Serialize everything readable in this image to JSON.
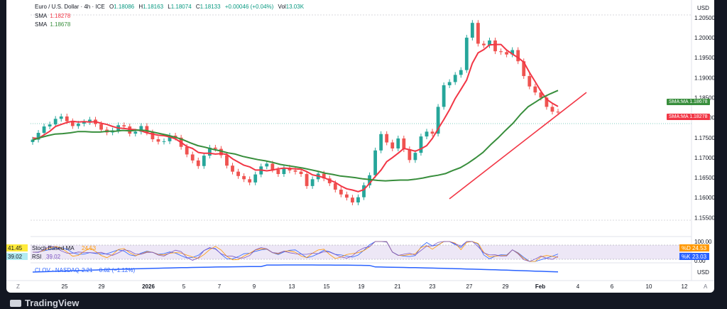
{
  "header": {
    "symbol": "Euro / U.S. Dollar · 4h · ICE",
    "open_label": "O",
    "open": "1.18086",
    "high_label": "H",
    "high": "1.18163",
    "low_label": "L",
    "low": "1.18074",
    "close_label": "C",
    "close": "1.18133",
    "change": "+0.00046 (+0.04%)",
    "vol_label": "Vol",
    "vol": "13.03K",
    "sma_fast_label": "SMA",
    "sma_fast": "1.18278",
    "sma_slow_label": "SMA",
    "sma_slow": "1.18678"
  },
  "currency": "USD",
  "currency2": "USD",
  "price_tags": {
    "slow": {
      "label": "SMA:MA",
      "value": "1.18678"
    },
    "fast": {
      "label": "SMA:MA",
      "value": "1.18278"
    }
  },
  "lower": {
    "stoch_label": "Stoch Based MA",
    "stoch_value": "41.45",
    "stoch_d": "24.53",
    "rsi_label": "RSI",
    "rsi_value": "39.02",
    "rsi_sub": "39.02",
    "clov_label": "CLOV · NASDAQ",
    "clov_value": "2.21",
    "clov_change": "−0.02 (−1.12%)",
    "tag_d": {
      "label": "%D",
      "value": "24.53"
    },
    "tag_k": {
      "label": "%K",
      "value": "23.03"
    },
    "axis_labels": [
      "100.00",
      "0.00"
    ]
  },
  "time_axis": [
    "25",
    "29",
    "2026",
    "5",
    "7",
    "9",
    "13",
    "15",
    "19",
    "21",
    "23",
    "27",
    "29",
    "Feb",
    "4",
    "6",
    "10",
    "12"
  ],
  "corner_left": "Z",
  "corner_right": "A",
  "brand": "TradingView",
  "colors": {
    "up": "#26a69a",
    "down": "#ef5350",
    "sma_fast": "#f23645",
    "sma_slow": "#388e3c",
    "trend": "#f23645"
  },
  "chart_data": {
    "type": "candlestick",
    "title": "Euro / U.S. Dollar · 4h · ICE",
    "ylabel": "USD",
    "ylim": [
      1.154,
      1.208
    ],
    "y_ticks": [
      "1.15500",
      "1.16000",
      "1.16500",
      "1.17000",
      "1.17500",
      "1.18000",
      "1.18500",
      "1.19000",
      "1.19500",
      "1.20000",
      "1.20500"
    ],
    "x_ticks": [
      "25",
      "29",
      "2026",
      "5",
      "7",
      "9",
      "13",
      "15",
      "19",
      "21",
      "23",
      "27",
      "29",
      "Feb",
      "4",
      "6",
      "10",
      "12"
    ],
    "close_prices": [
      1.1745,
      1.1762,
      1.1778,
      1.1783,
      1.1797,
      1.1803,
      1.1791,
      1.1779,
      1.1785,
      1.1789,
      1.1795,
      1.1784,
      1.177,
      1.1763,
      1.1768,
      1.1781,
      1.1778,
      1.176,
      1.1765,
      1.1779,
      1.1763,
      1.1746,
      1.174,
      1.1741,
      1.1755,
      1.175,
      1.1727,
      1.1708,
      1.1693,
      1.1679,
      1.1705,
      1.1725,
      1.1722,
      1.1706,
      1.168,
      1.1665,
      1.1654,
      1.1646,
      1.1638,
      1.1658,
      1.1678,
      1.1685,
      1.167,
      1.1659,
      1.1675,
      1.1668,
      1.1665,
      1.1659,
      1.1629,
      1.1646,
      1.166,
      1.1648,
      1.1636,
      1.162,
      1.1608,
      1.16,
      1.1588,
      1.1601,
      1.1631,
      1.1656,
      1.1718,
      1.1759,
      1.1738,
      1.1723,
      1.1748,
      1.1721,
      1.1694,
      1.1712,
      1.1753,
      1.1765,
      1.176,
      1.1827,
      1.1881,
      1.1889,
      1.1907,
      1.1919,
      1.2,
      1.2037,
      1.1985,
      1.1981,
      1.1993,
      1.1966,
      1.1964,
      1.1958,
      1.1969,
      1.1941,
      1.1904,
      1.1878,
      1.1863,
      1.185,
      1.1827,
      1.1815,
      1.1813
    ],
    "series": [
      {
        "name": "SMA 1.18278",
        "values": [
          1.1749,
          1.1748,
          1.1757,
          1.1766,
          1.1778,
          1.1783,
          1.1788,
          1.1791,
          1.1789,
          1.179,
          1.1789,
          1.179,
          1.1786,
          1.1783,
          1.1778,
          1.1774,
          1.1773,
          1.1771,
          1.177,
          1.1767,
          1.1762,
          1.1759,
          1.1756,
          1.1755,
          1.1752,
          1.1747,
          1.1738,
          1.1728,
          1.1723,
          1.1713,
          1.1711,
          1.1711,
          1.1709,
          1.171,
          1.1708,
          1.1697,
          1.1689,
          1.1681,
          1.1677,
          1.1669,
          1.1669,
          1.1667,
          1.1669,
          1.1672,
          1.1674,
          1.1673,
          1.1672,
          1.1671,
          1.1665,
          1.1657,
          1.1654,
          1.165,
          1.1644,
          1.1638,
          1.1629,
          1.1622,
          1.1619,
          1.1615,
          1.162,
          1.1636,
          1.1653,
          1.1669,
          1.169,
          1.17,
          1.1711,
          1.1723,
          1.172,
          1.1716,
          1.1722,
          1.173,
          1.1748,
          1.1772,
          1.1795,
          1.182,
          1.1848,
          1.1871,
          1.1894,
          1.1936,
          1.1962,
          1.197,
          1.1982,
          1.1983,
          1.1983,
          1.1969,
          1.1959,
          1.195,
          1.1939,
          1.1913,
          1.189,
          1.1866,
          1.1846,
          1.1836,
          1.1828
        ]
      },
      {
        "name": "SMA 1.18678",
        "values": [
          1.1744,
          1.175,
          1.1755,
          1.1759,
          1.176,
          1.1762,
          1.1765,
          1.1765,
          1.1764,
          1.1764,
          1.1766,
          1.1766,
          1.1768,
          1.1767,
          1.1769,
          1.1768,
          1.1764,
          1.176,
          1.1756,
          1.1751,
          1.1745,
          1.1737,
          1.173,
          1.1726,
          1.1721,
          1.1717,
          1.1712,
          1.1709,
          1.1703,
          1.1699,
          1.1695,
          1.1692,
          1.1688,
          1.1683,
          1.168,
          1.1677,
          1.1674,
          1.167,
          1.1666,
          1.1661,
          1.1658,
          1.1654,
          1.1652,
          1.165,
          1.1647,
          1.1645,
          1.1643,
          1.1642,
          1.1643,
          1.1644,
          1.1644,
          1.1646,
          1.1649,
          1.1653,
          1.1656,
          1.166,
          1.1668,
          1.1675,
          1.1686,
          1.1699,
          1.1713,
          1.1732,
          1.1749,
          1.1768,
          1.1786,
          1.1808,
          1.1827,
          1.1839,
          1.1851,
          1.186,
          1.1868
        ]
      }
    ],
    "trendline": {
      "from": [
        1.1597
      ],
      "to": [
        1.1863
      ]
    },
    "annotations": [
      "SMA:MA 1.18678",
      "SMA:MA 1.18278"
    ]
  }
}
